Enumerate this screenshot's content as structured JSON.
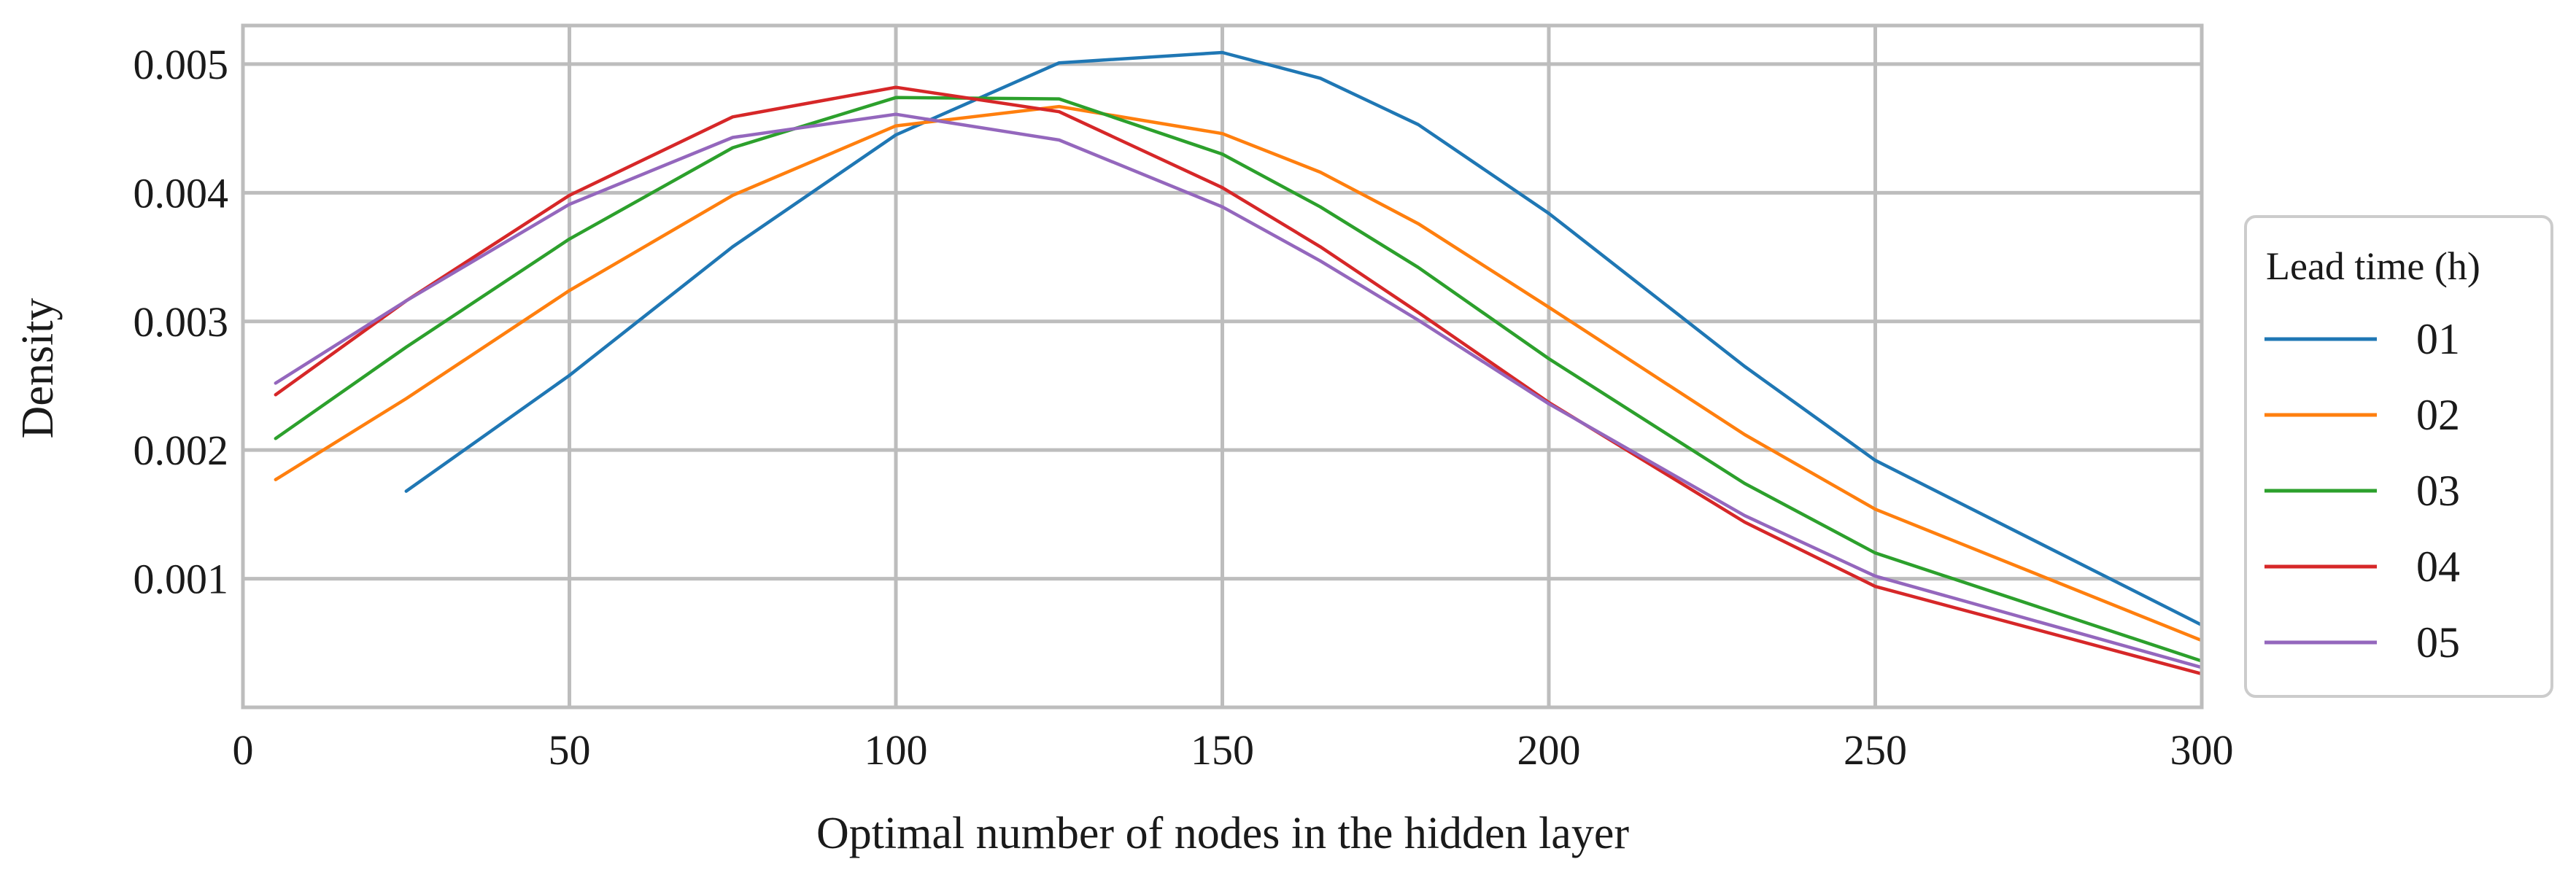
{
  "chart_data": {
    "type": "line",
    "xlabel": "Optimal number of nodes in the hidden layer",
    "ylabel": "Density",
    "xlim": [
      0,
      300
    ],
    "ylim": [
      0,
      0.0053
    ],
    "x_ticks": [
      0,
      50,
      100,
      150,
      200,
      250,
      300
    ],
    "x_tick_labels": [
      "0",
      "50",
      "100",
      "150",
      "200",
      "250",
      "300"
    ],
    "y_ticks": [
      0.001,
      0.002,
      0.003,
      0.004,
      0.005
    ],
    "y_tick_labels": [
      "0.001",
      "0.002",
      "0.003",
      "0.004",
      "0.005"
    ],
    "grid": true,
    "legend": {
      "title": "Lead time (h)",
      "placement": "right"
    },
    "series": [
      {
        "name": "01",
        "color": "#1f77b4",
        "x": [
          25,
          50,
          75,
          100,
          125,
          150,
          165,
          180,
          200,
          230,
          250,
          300
        ],
        "y": [
          0.00168,
          0.00258,
          0.00358,
          0.00445,
          0.00501,
          0.00509,
          0.00489,
          0.00453,
          0.00384,
          0.00265,
          0.00192,
          0.00064
        ]
      },
      {
        "name": "02",
        "color": "#ff7f0e",
        "x": [
          5,
          25,
          50,
          75,
          100,
          125,
          150,
          165,
          180,
          200,
          230,
          250,
          300
        ],
        "y": [
          0.00177,
          0.0024,
          0.00324,
          0.00398,
          0.00452,
          0.00467,
          0.00446,
          0.00416,
          0.00376,
          0.00311,
          0.00212,
          0.00154,
          0.00052
        ]
      },
      {
        "name": "03",
        "color": "#2ca02c",
        "x": [
          5,
          25,
          50,
          75,
          100,
          125,
          150,
          165,
          180,
          200,
          230,
          250,
          300
        ],
        "y": [
          0.00209,
          0.0028,
          0.00364,
          0.00435,
          0.00474,
          0.00473,
          0.0043,
          0.00389,
          0.00342,
          0.00271,
          0.00174,
          0.0012,
          0.00036
        ]
      },
      {
        "name": "04",
        "color": "#d62728",
        "x": [
          5,
          25,
          50,
          75,
          100,
          125,
          150,
          165,
          180,
          200,
          230,
          250,
          300
        ],
        "y": [
          0.00243,
          0.00316,
          0.00398,
          0.00459,
          0.00482,
          0.00463,
          0.00404,
          0.00358,
          0.00307,
          0.00237,
          0.00144,
          0.00094,
          0.00026
        ]
      },
      {
        "name": "05",
        "color": "#9467bd",
        "x": [
          5,
          25,
          50,
          75,
          100,
          125,
          150,
          165,
          180,
          200,
          230,
          250,
          300
        ],
        "y": [
          0.00252,
          0.00316,
          0.00391,
          0.00443,
          0.00461,
          0.00441,
          0.00389,
          0.00347,
          0.00301,
          0.00236,
          0.00149,
          0.00102,
          0.00031
        ]
      }
    ]
  }
}
